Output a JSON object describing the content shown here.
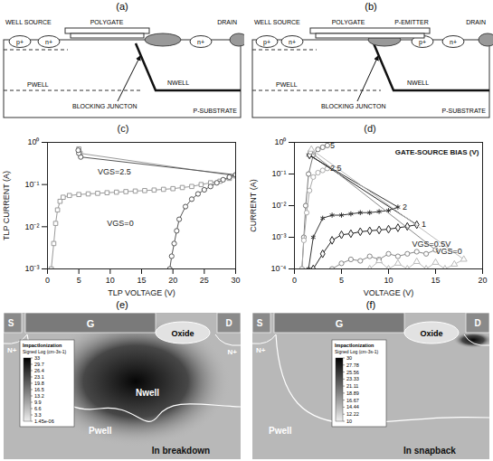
{
  "diagram_a": {
    "title": "(a)",
    "labels": {
      "well_source": "WELL SOURCE",
      "polygate": "POLYGATE",
      "drain": "DRAIN",
      "pwell": "PWELL",
      "nwell": "NWELL",
      "substrate": "P-SUBSTRATE",
      "junction": "BLOCKING JUNCTON"
    },
    "diffusions": [
      "p+",
      "n+",
      "n+"
    ]
  },
  "diagram_b": {
    "title": "(b)",
    "labels": {
      "well_source": "WELL SOURCE",
      "polygate": "POLYGATE",
      "emitter": "P-EMITTER",
      "drain": "DRAIN",
      "pwell": "PWELL",
      "nwell": "NWELL",
      "substrate": "P-SUBSTRATE",
      "junction": "BLOCKING JUNCTON"
    },
    "diffusions": [
      "p+",
      "n+",
      "p+",
      "n+"
    ]
  },
  "chart_data": [
    {
      "type": "line",
      "title": "(c)",
      "xlabel": "TLP VOLTAGE (V)",
      "ylabel": "TLP CURRENT (A)",
      "log": "y",
      "xlim": [
        0,
        30
      ],
      "ylim": [
        0.001,
        1
      ],
      "xticks": [
        0,
        5,
        10,
        15,
        20,
        25,
        30
      ],
      "yticks": [
        {
          "value": 0.001,
          "label": "10⁻³"
        },
        {
          "value": 0.01,
          "label": "10⁻²"
        },
        {
          "value": 0.1,
          "label": "10⁻¹"
        },
        {
          "value": 1,
          "label": "10⁰"
        }
      ],
      "series": [
        {
          "color": "#9a9a9a",
          "marker": "square",
          "x": [
            0.6,
            1.0,
            1.3,
            1.6,
            2.0,
            2.5,
            3.5,
            5,
            6.5,
            8,
            9.5,
            11,
            12.5,
            14,
            15.5,
            17,
            18.5,
            20,
            21.5,
            23,
            24.5,
            26,
            27.5,
            29,
            30,
            5.2,
            5.0
          ],
          "values": [
            0.001,
            0.004,
            0.012,
            0.025,
            0.04,
            0.05,
            0.055,
            0.058,
            0.06,
            0.062,
            0.064,
            0.066,
            0.068,
            0.07,
            0.072,
            0.074,
            0.077,
            0.08,
            0.085,
            0.09,
            0.1,
            0.11,
            0.12,
            0.14,
            0.16,
            0.55,
            0.7
          ]
        },
        {
          "color": "#555555",
          "marker": "circle",
          "x": [
            19.5,
            19.8,
            20.2,
            20.6,
            21,
            22,
            23,
            24,
            25,
            26,
            27,
            28,
            29,
            30,
            5.3,
            5.0,
            4.9
          ],
          "values": [
            0.001,
            0.002,
            0.004,
            0.008,
            0.015,
            0.03,
            0.045,
            0.06,
            0.075,
            0.09,
            0.11,
            0.13,
            0.15,
            0.17,
            0.45,
            0.55,
            0.65
          ]
        }
      ],
      "annotations": [
        {
          "text": "VGS=2.5",
          "x": 8,
          "y": 0.2
        },
        {
          "text": "VGS=0",
          "x": 9.5,
          "y": 0.012
        }
      ]
    },
    {
      "type": "line",
      "title": "(d)",
      "subtitle": "GATE-SOURCE BIAS (V)",
      "xlabel": "VOLTAGE (V)",
      "ylabel": "CURRENT (A)",
      "log": "y",
      "xlim": [
        0,
        20
      ],
      "ylim": [
        0.0001,
        1
      ],
      "xticks": [
        0,
        5,
        10,
        15,
        20
      ],
      "yticks": [
        {
          "value": 0.0001,
          "label": "10⁻⁴"
        },
        {
          "value": 0.001,
          "label": "10⁻³"
        },
        {
          "value": 0.01,
          "label": "10⁻²"
        },
        {
          "value": 0.1,
          "label": "10⁻¹"
        },
        {
          "value": 1,
          "label": "10⁰"
        }
      ],
      "series": [
        {
          "color": "#777777",
          "marker": "circle",
          "x": [
            0.8,
            1.0,
            1.2,
            1.5,
            2.0,
            2.5,
            3.0,
            3.5
          ],
          "values": [
            0.0001,
            0.001,
            0.01,
            0.1,
            0.4,
            0.6,
            0.7,
            0.8
          ]
        },
        {
          "color": "#aaaaaa",
          "marker": "circle",
          "x": [
            0.8,
            1.0,
            1.3,
            1.6,
            2.0,
            2.5,
            3.0,
            3.5
          ],
          "values": [
            0.0001,
            0.0008,
            0.006,
            0.03,
            0.08,
            0.11,
            0.13,
            0.15
          ]
        },
        {
          "color": "#333333",
          "marker": "asterisk",
          "x": [
            1.5,
            2,
            3,
            4,
            5,
            6,
            7,
            8,
            9,
            10,
            11,
            1.5
          ],
          "values": [
            0.0001,
            0.001,
            0.004,
            0.005,
            0.005,
            0.0055,
            0.006,
            0.006,
            0.0065,
            0.007,
            0.009,
            0.4
          ]
        },
        {
          "color": "#222222",
          "marker": "diamond",
          "x": [
            2,
            3,
            4,
            5,
            6,
            7,
            8,
            9,
            10,
            11,
            12,
            13,
            1.6
          ],
          "values": [
            0.0001,
            0.0003,
            0.0008,
            0.0012,
            0.0013,
            0.0015,
            0.0016,
            0.0017,
            0.0018,
            0.002,
            0.0022,
            0.0025,
            0.4
          ]
        },
        {
          "color": "#888888",
          "marker": "circle",
          "x": [
            4,
            5,
            6,
            7,
            8,
            9,
            10,
            11,
            12,
            13,
            14,
            15,
            1.7
          ],
          "values": [
            0.0001,
            0.00015,
            0.0002,
            0.00018,
            0.00025,
            0.0002,
            0.0003,
            0.00025,
            0.0003,
            0.00035,
            0.0003,
            0.0004,
            0.5
          ]
        },
        {
          "color": "#bbbbbb",
          "marker": "triangle",
          "x": [
            8,
            9,
            10,
            11,
            12,
            13,
            14,
            15,
            16,
            17,
            18,
            1.8
          ],
          "values": [
            0.0001,
            0.00018,
            0.0001,
            0.00015,
            0.0001,
            0.00017,
            0.0001,
            0.00016,
            0.0001,
            0.00014,
            0.0002,
            0.6
          ]
        }
      ],
      "annotations": [
        {
          "text": "5",
          "x": 3.8,
          "y": 0.8
        },
        {
          "text": "2.5",
          "x": 3.8,
          "y": 0.15
        },
        {
          "text": "2",
          "x": 11.5,
          "y": 0.009
        },
        {
          "text": "1",
          "x": 13.5,
          "y": 0.0025
        },
        {
          "text": "VGS=0.5V",
          "x": 12.5,
          "y": 0.0006
        },
        {
          "text": "VGS=0",
          "x": 15,
          "y": 0.00035
        }
      ]
    }
  ],
  "simulation_e": {
    "title": "(e)",
    "labels": {
      "source": "S",
      "gate": "G",
      "drain": "D",
      "oxide": "Oxide",
      "n_source": "N+",
      "n_drain": "N+",
      "nwell": "Nwell",
      "pwell": "Pwell",
      "state": "In breakdown"
    },
    "colorbar": {
      "title": "ImpactIonization",
      "subtitle": "Signed Log (cm-3s-1)",
      "range": [
        1.45e-06,
        33
      ],
      "ticks": [
        33,
        29.7,
        26.4,
        23.1,
        19.8,
        16.5,
        13.2,
        9.9,
        6.6,
        3.3,
        {
          "value": 1.45e-06,
          "label": "1.45e-06"
        }
      ]
    }
  },
  "simulation_f": {
    "title": "(f)",
    "labels": {
      "source": "S",
      "gate": "G",
      "drain": "D",
      "oxide": "Oxide",
      "n_source": "N+",
      "pwell": "Pwell",
      "state": "In snapback"
    },
    "colorbar": {
      "title": "ImpactIonization",
      "subtitle": "Signed Log (cm-3s-1)",
      "range": [
        10,
        30
      ],
      "ticks": [
        30,
        27.78,
        25.56,
        23.33,
        21.11,
        18.89,
        16.67,
        14.44,
        12.22,
        10
      ]
    }
  }
}
